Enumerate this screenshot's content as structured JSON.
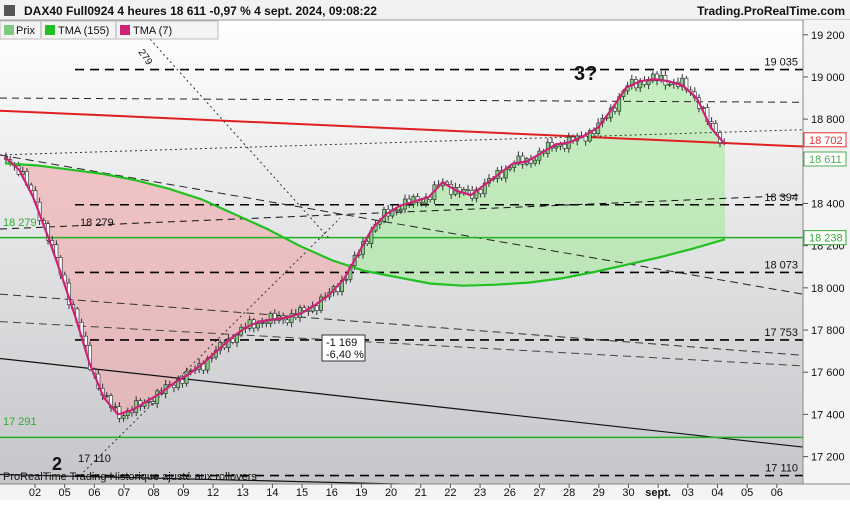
{
  "header": {
    "title": "DAX40 Full0924 4 heures 18 611 -0,97 % 4 sept. 2024, 09:08:22",
    "brand": "Trading.ProRealTime.com"
  },
  "legend": [
    {
      "label": "Prix",
      "color": "#4caf50"
    },
    {
      "label": "TMA (155)",
      "color": "#22c022"
    },
    {
      "label": "TMA (7)",
      "color": "#cc2277"
    }
  ],
  "footer": "ProRealTime Trading Historique ajusté aux rollovers",
  "chart_data": {
    "type": "line",
    "ylim": [
      17070,
      19270
    ],
    "y_ticks": [
      19200,
      19000,
      18800,
      18600,
      18400,
      18200,
      18000,
      17800,
      17600,
      17400,
      17200
    ],
    "y_tick_labels": [
      "19 200",
      "19 000",
      "18 800",
      "18 600",
      "18 400",
      "18 200",
      "18 000",
      "17 800",
      "17 600",
      "17 400",
      "17 200"
    ],
    "x_labels": [
      "02",
      "05",
      "06",
      "07",
      "08",
      "09",
      "12",
      "13",
      "14",
      "15",
      "16",
      "19",
      "20",
      "21",
      "22",
      "23",
      "26",
      "27",
      "28",
      "29",
      "30",
      "sept.",
      "03",
      "04",
      "05",
      "06"
    ],
    "price_badges": [
      {
        "value": 18702,
        "label": "18 702",
        "color": "#e53030"
      },
      {
        "value": 18611,
        "label": "18 611",
        "color": "#4caf50"
      },
      {
        "value": 18238,
        "label": "18 238",
        "color": "#33aa33"
      }
    ],
    "levels": [
      {
        "value": 19035,
        "label": "19 035"
      },
      {
        "value": 18394,
        "label": "18 394"
      },
      {
        "value": 18073,
        "label": "18 073"
      },
      {
        "value": 17753,
        "label": "17 753"
      },
      {
        "value": 17110,
        "label": "17 110"
      }
    ],
    "annotations": [
      {
        "text": "3?"
      },
      {
        "text": "2"
      },
      {
        "text": "18 279"
      },
      {
        "text": "17 110"
      },
      {
        "text": "17 291"
      },
      {
        "text": "18 279"
      },
      {
        "text": "279"
      },
      {
        "text": "-1 169"
      },
      {
        "text": "-6,40 %"
      }
    ],
    "series": [
      {
        "name": "TMA (7)",
        "values": [
          18620,
          18560,
          18430,
          18250,
          18060,
          17860,
          17640,
          17480,
          17400,
          17420,
          17460,
          17500,
          17550,
          17590,
          17640,
          17700,
          17760,
          17810,
          17840,
          17850,
          17860,
          17880,
          17920,
          17970,
          18040,
          18160,
          18280,
          18350,
          18390,
          18410,
          18430,
          18500,
          18460,
          18440,
          18490,
          18540,
          18590,
          18600,
          18640,
          18680,
          18690,
          18720,
          18760,
          18850,
          18950,
          18980,
          18990,
          18980,
          18960,
          18900,
          18760,
          18680
        ]
      },
      {
        "name": "TMA (155)",
        "values": [
          18590,
          18580,
          18560,
          18540,
          18510,
          18470,
          18420,
          18350,
          18280,
          18200,
          18130,
          18080,
          18050,
          18020,
          18010,
          18015,
          18025,
          18045,
          18075,
          18110,
          18145,
          18185,
          18230
        ]
      }
    ]
  }
}
